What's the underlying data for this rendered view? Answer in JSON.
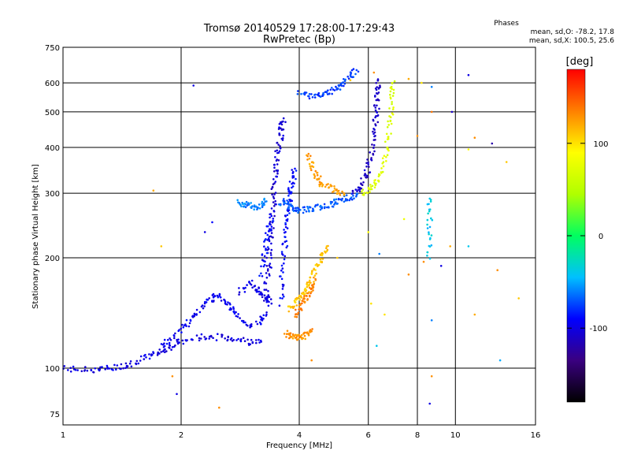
{
  "chart_data": {
    "type": "scatter",
    "title": "Tromsø 20140529 17:28:00-17:29:43",
    "subtitle": "RwPretec (Bp)",
    "xlabel": "Frequency [MHz]",
    "ylabel": "Stationary phase Virtual Height [km]",
    "xscale": "log",
    "yscale": "log",
    "xlim": [
      1,
      16
    ],
    "ylim": [
      70,
      750
    ],
    "xticks": [
      1,
      2,
      4,
      6,
      8,
      10,
      16
    ],
    "yticks": [
      75,
      100,
      200,
      300,
      400,
      500,
      600,
      750
    ],
    "grid": true,
    "phase_stats": {
      "heading": "Phases",
      "line_o": "mean, sd,O: -78.2, 17.8",
      "line_x": "mean, sd,X: 100.5, 25.6"
    },
    "colorbar": {
      "label": "[deg]",
      "range": [
        -180,
        180
      ],
      "ticks": [
        100,
        0,
        -100
      ],
      "colormap": "rainbow",
      "colors": [
        "#000000",
        "#3a0080",
        "#0000ff",
        "#00c0ff",
        "#00ff60",
        "#b0ff00",
        "#ffff00",
        "#ff8000",
        "#ff0000"
      ]
    },
    "traces": [
      {
        "name": "",
        "phase": -100,
        "points": [
          [
            1.0,
            100
          ],
          [
            1.1,
            99
          ],
          [
            1.2,
            99
          ],
          [
            1.3,
            100
          ],
          [
            1.4,
            101
          ],
          [
            1.5,
            103
          ],
          [
            1.6,
            106
          ],
          [
            1.7,
            109
          ],
          [
            1.8,
            112
          ],
          [
            1.9,
            115
          ],
          [
            2.0,
            118
          ],
          [
            2.2,
            121
          ],
          [
            2.4,
            122
          ],
          [
            2.6,
            121
          ],
          [
            2.8,
            120
          ],
          [
            3.0,
            118
          ],
          [
            3.2,
            118
          ]
        ]
      },
      {
        "name": "",
        "phase": -95,
        "points": [
          [
            1.8,
            115
          ],
          [
            1.9,
            120
          ],
          [
            2.0,
            128
          ],
          [
            2.1,
            135
          ],
          [
            2.2,
            142
          ],
          [
            2.3,
            150
          ],
          [
            2.4,
            155
          ],
          [
            2.5,
            160
          ],
          [
            2.6,
            150
          ],
          [
            2.7,
            145
          ],
          [
            2.8,
            138
          ],
          [
            3.0,
            130
          ],
          [
            3.2,
            135
          ],
          [
            3.3,
            140
          ]
        ]
      },
      {
        "name": "",
        "phase": -105,
        "points": [
          [
            3.3,
            150
          ],
          [
            3.3,
            170
          ],
          [
            3.35,
            190
          ],
          [
            3.35,
            210
          ],
          [
            3.4,
            230
          ],
          [
            3.4,
            255
          ],
          [
            3.45,
            280
          ],
          [
            3.45,
            310
          ],
          [
            3.5,
            340
          ],
          [
            3.5,
            370
          ],
          [
            3.55,
            400
          ],
          [
            3.6,
            430
          ],
          [
            3.6,
            460
          ],
          [
            3.65,
            480
          ]
        ]
      },
      {
        "name": "",
        "phase": -90,
        "points": [
          [
            3.6,
            150
          ],
          [
            3.6,
            175
          ],
          [
            3.65,
            200
          ],
          [
            3.7,
            225
          ],
          [
            3.7,
            250
          ],
          [
            3.75,
            270
          ],
          [
            3.8,
            290
          ],
          [
            3.8,
            310
          ],
          [
            3.85,
            330
          ],
          [
            3.9,
            350
          ]
        ]
      },
      {
        "name": "",
        "phase": -70,
        "points": [
          [
            3.6,
            285
          ],
          [
            3.7,
            280
          ],
          [
            3.8,
            276
          ],
          [
            3.9,
            272
          ],
          [
            4.0,
            270
          ],
          [
            4.2,
            271
          ],
          [
            4.4,
            273
          ],
          [
            4.6,
            276
          ],
          [
            4.8,
            280
          ],
          [
            5.0,
            285
          ],
          [
            5.2,
            290
          ],
          [
            5.4,
            293
          ],
          [
            5.6,
            296
          ]
        ]
      },
      {
        "name": "",
        "phase": -60,
        "points": [
          [
            2.8,
            285
          ],
          [
            2.9,
            280
          ],
          [
            3.0,
            278
          ],
          [
            3.1,
            276
          ],
          [
            3.2,
            280
          ],
          [
            3.3,
            285
          ]
        ]
      },
      {
        "name": "",
        "phase": -110,
        "points": [
          [
            5.5,
            300
          ],
          [
            5.7,
            310
          ],
          [
            5.9,
            330
          ],
          [
            6.0,
            350
          ],
          [
            6.1,
            380
          ],
          [
            6.2,
            420
          ],
          [
            6.25,
            460
          ],
          [
            6.3,
            500
          ],
          [
            6.3,
            540
          ],
          [
            6.35,
            580
          ],
          [
            6.35,
            610
          ]
        ]
      },
      {
        "name": "",
        "phase": -75,
        "points": [
          [
            4.0,
            560
          ],
          [
            4.2,
            555
          ],
          [
            4.4,
            552
          ],
          [
            4.6,
            555
          ],
          [
            4.8,
            565
          ],
          [
            5.0,
            580
          ],
          [
            5.2,
            600
          ],
          [
            5.4,
            625
          ],
          [
            5.6,
            650
          ]
        ]
      },
      {
        "name": "",
        "phase": 125,
        "points": [
          [
            4.2,
            385
          ],
          [
            4.3,
            360
          ],
          [
            4.4,
            340
          ],
          [
            4.5,
            325
          ],
          [
            4.6,
            315
          ],
          [
            4.8,
            310
          ],
          [
            5.0,
            305
          ],
          [
            5.2,
            300
          ]
        ]
      },
      {
        "name": "",
        "phase": 70,
        "points": [
          [
            5.8,
            300
          ],
          [
            6.0,
            305
          ],
          [
            6.2,
            315
          ],
          [
            6.4,
            330
          ],
          [
            6.6,
            360
          ],
          [
            6.7,
            400
          ],
          [
            6.8,
            450
          ],
          [
            6.85,
            500
          ],
          [
            6.9,
            560
          ],
          [
            6.9,
            600
          ]
        ]
      },
      {
        "name": "",
        "phase": 130,
        "points": [
          [
            3.7,
            125
          ],
          [
            3.8,
            123
          ],
          [
            3.9,
            122
          ],
          [
            4.0,
            121
          ],
          [
            4.1,
            122
          ],
          [
            4.2,
            124
          ],
          [
            4.3,
            126
          ]
        ]
      },
      {
        "name": "",
        "phase": 110,
        "points": [
          [
            3.8,
            145
          ],
          [
            3.9,
            150
          ],
          [
            4.0,
            155
          ],
          [
            4.1,
            160
          ],
          [
            4.2,
            165
          ],
          [
            4.3,
            175
          ],
          [
            4.4,
            185
          ],
          [
            4.5,
            195
          ],
          [
            4.6,
            205
          ],
          [
            4.7,
            215
          ]
        ]
      },
      {
        "name": "",
        "phase": 135,
        "points": [
          [
            3.9,
            140
          ],
          [
            4.0,
            145
          ],
          [
            4.1,
            150
          ],
          [
            4.2,
            158
          ],
          [
            4.3,
            165
          ],
          [
            4.4,
            175
          ]
        ]
      },
      {
        "name": "",
        "phase": -40,
        "points": [
          [
            8.6,
            200
          ],
          [
            8.6,
            230
          ],
          [
            8.6,
            260
          ],
          [
            8.6,
            290
          ]
        ]
      },
      {
        "name": "",
        "phase": -90,
        "points": [
          [
            3.2,
            180
          ],
          [
            3.25,
            200
          ],
          [
            3.3,
            220
          ],
          [
            3.35,
            240
          ],
          [
            3.4,
            260
          ]
        ]
      },
      {
        "name": "",
        "phase": -100,
        "points": [
          [
            2.8,
            160
          ],
          [
            3.0,
            170
          ],
          [
            3.1,
            165
          ],
          [
            3.2,
            160
          ],
          [
            3.3,
            155
          ],
          [
            3.4,
            150
          ]
        ]
      }
    ],
    "scatter_points": [
      {
        "x": 1.78,
        "y": 215,
        "phase": 110
      },
      {
        "x": 1.95,
        "y": 85,
        "phase": -100
      },
      {
        "x": 2.15,
        "y": 590,
        "phase": -100
      },
      {
        "x": 1.9,
        "y": 95,
        "phase": 130
      },
      {
        "x": 2.5,
        "y": 78,
        "phase": 130
      },
      {
        "x": 2.4,
        "y": 250,
        "phase": -90
      },
      {
        "x": 2.3,
        "y": 235,
        "phase": -100
      },
      {
        "x": 1.7,
        "y": 305,
        "phase": 120
      },
      {
        "x": 5.4,
        "y": 610,
        "phase": 110
      },
      {
        "x": 6.2,
        "y": 640,
        "phase": 130
      },
      {
        "x": 7.6,
        "y": 615,
        "phase": 120
      },
      {
        "x": 8.2,
        "y": 600,
        "phase": 100
      },
      {
        "x": 8.7,
        "y": 585,
        "phase": -60
      },
      {
        "x": 8.7,
        "y": 500,
        "phase": 140
      },
      {
        "x": 9.8,
        "y": 500,
        "phase": -110
      },
      {
        "x": 10.8,
        "y": 630,
        "phase": -100
      },
      {
        "x": 11.2,
        "y": 425,
        "phase": 130
      },
      {
        "x": 12.4,
        "y": 410,
        "phase": -120
      },
      {
        "x": 10.8,
        "y": 395,
        "phase": 90
      },
      {
        "x": 13.5,
        "y": 365,
        "phase": 110
      },
      {
        "x": 8.0,
        "y": 430,
        "phase": 130
      },
      {
        "x": 7.4,
        "y": 255,
        "phase": 80
      },
      {
        "x": 7.6,
        "y": 180,
        "phase": 130
      },
      {
        "x": 8.3,
        "y": 195,
        "phase": 130
      },
      {
        "x": 9.2,
        "y": 190,
        "phase": -100
      },
      {
        "x": 9.7,
        "y": 215,
        "phase": 120
      },
      {
        "x": 10.8,
        "y": 215,
        "phase": -40
      },
      {
        "x": 12.8,
        "y": 185,
        "phase": 130
      },
      {
        "x": 14.5,
        "y": 155,
        "phase": 110
      },
      {
        "x": 11.2,
        "y": 140,
        "phase": 120
      },
      {
        "x": 13.0,
        "y": 105,
        "phase": -50
      },
      {
        "x": 8.7,
        "y": 135,
        "phase": -60
      },
      {
        "x": 8.7,
        "y": 95,
        "phase": 130
      },
      {
        "x": 8.6,
        "y": 80,
        "phase": -100
      },
      {
        "x": 6.0,
        "y": 235,
        "phase": 90
      },
      {
        "x": 6.4,
        "y": 205,
        "phase": -60
      },
      {
        "x": 6.1,
        "y": 150,
        "phase": 100
      },
      {
        "x": 5.0,
        "y": 200,
        "phase": 110
      },
      {
        "x": 6.6,
        "y": 140,
        "phase": 100
      },
      {
        "x": 6.3,
        "y": 115,
        "phase": -40
      },
      {
        "x": 4.3,
        "y": 105,
        "phase": 130
      }
    ]
  }
}
